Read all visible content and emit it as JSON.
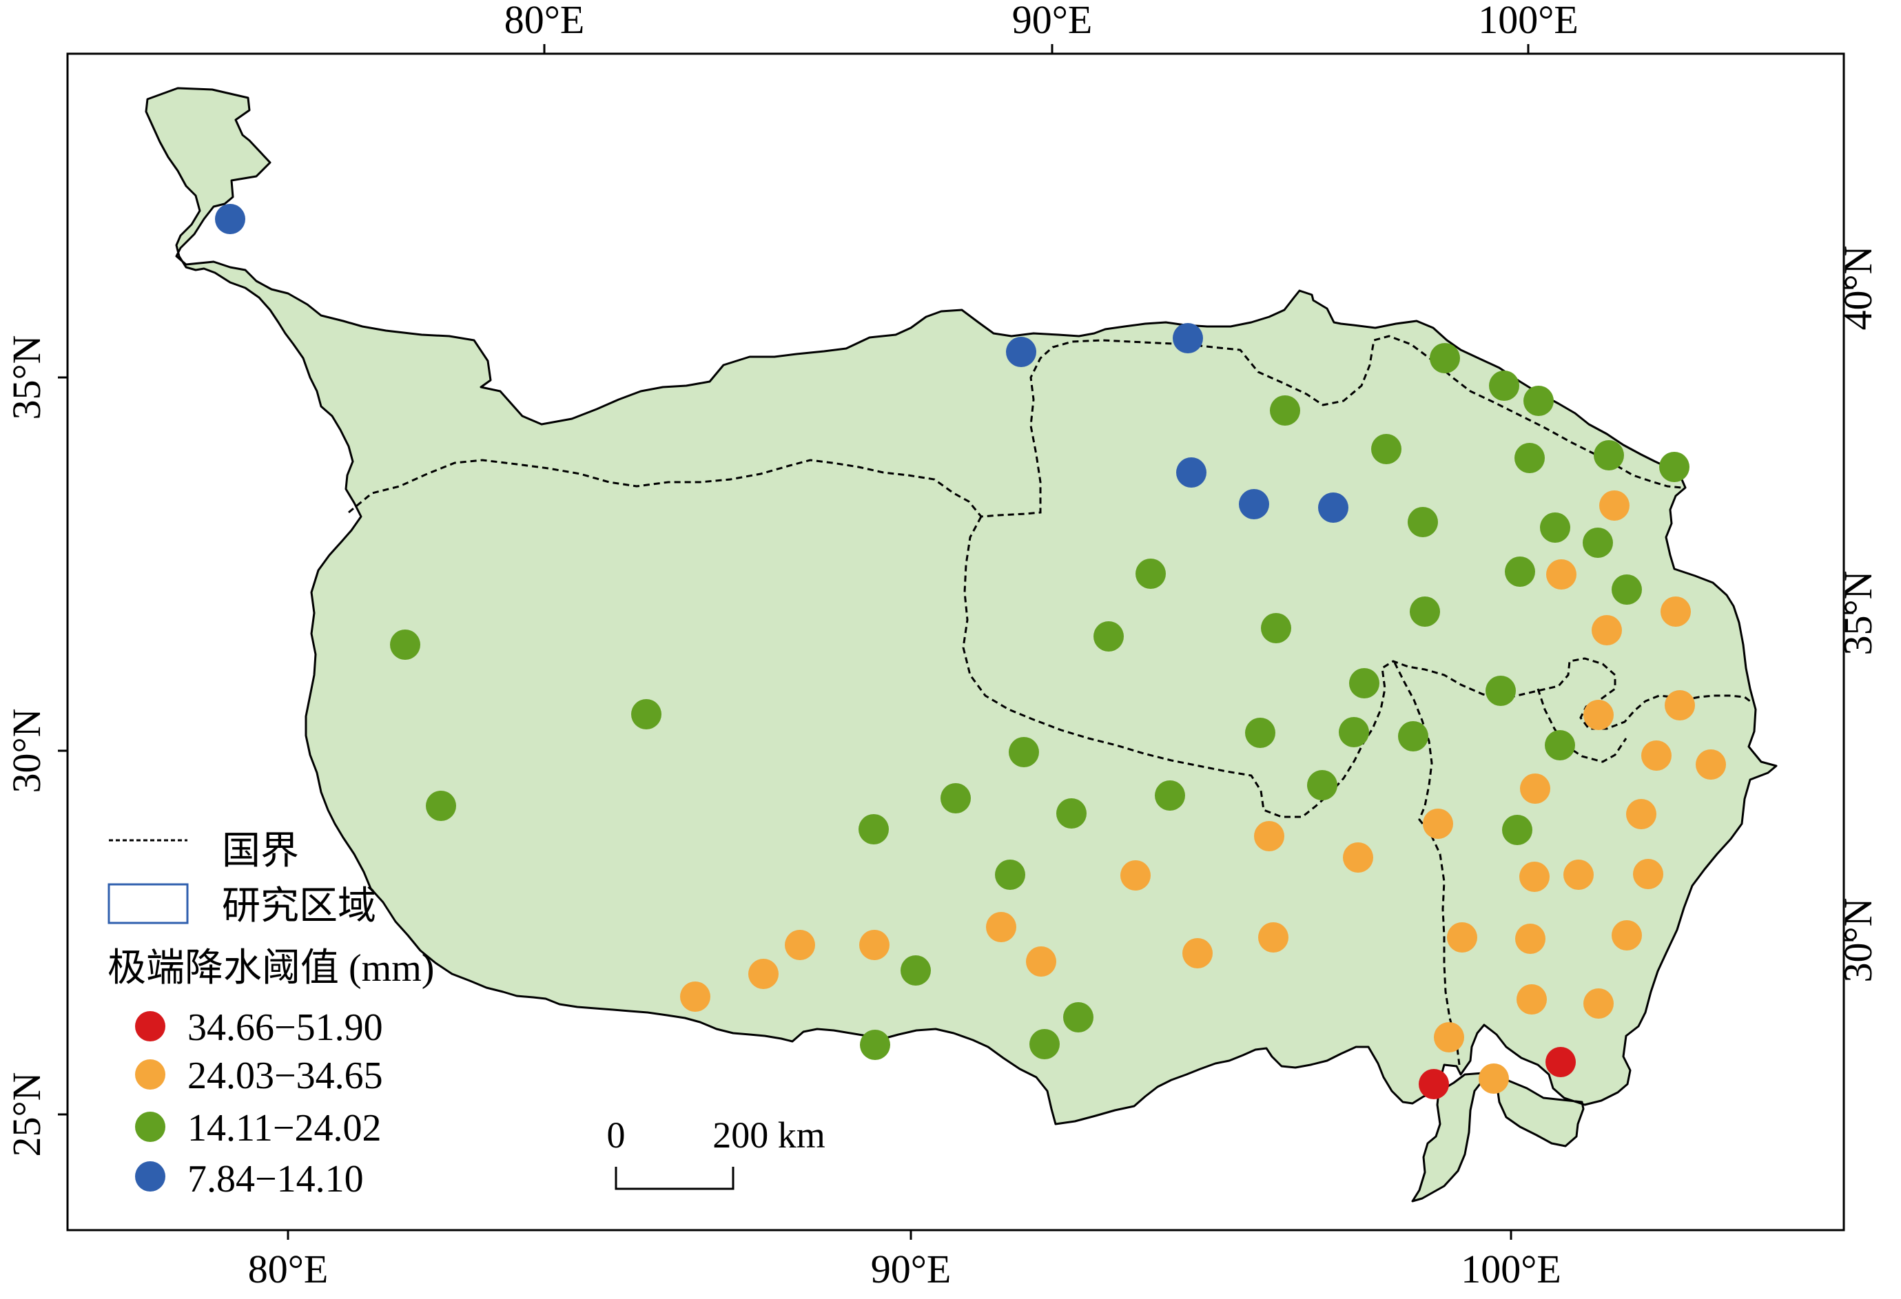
{
  "map": {
    "top_axis_labels": [
      "80°E",
      "90°E",
      "100°E"
    ],
    "bottom_axis_labels": [
      "80°E",
      "90°E",
      "100°E"
    ],
    "left_axis_labels": [
      "35°N",
      "30°N",
      "25°N"
    ],
    "right_axis_labels": [
      "40°N",
      "35°N",
      "30°N"
    ],
    "region_fill": "#d2e7c4",
    "legend": {
      "boundary_label": "国界",
      "study_area_label": "研究区域",
      "threshold_title": "极端降水阈值 (mm)",
      "classes": [
        {
          "label": "34.66−51.90",
          "color": "#d7191c"
        },
        {
          "label": "24.03−34.65",
          "color": "#f5a73b"
        },
        {
          "label": "14.11−24.02",
          "color": "#62a021"
        },
        {
          "label": "7.84−14.10",
          "color": "#2f5fae"
        }
      ]
    },
    "scale_bar": {
      "start_label": "0",
      "end_label": "200 km"
    }
  }
}
